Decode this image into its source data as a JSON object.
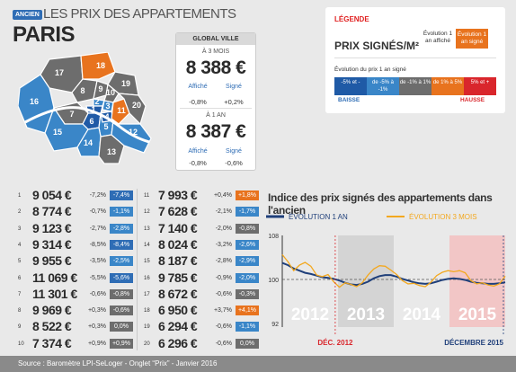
{
  "header": {
    "badge": "ANCIEN",
    "title": "LES PRIX DES APPARTEMENTS",
    "city": "PARIS"
  },
  "global": {
    "title": "GLOBAL VILLE",
    "p3": {
      "label": "À 3 MOIS",
      "price": "8 388 €",
      "affiche_label": "Affiché",
      "signe_label": "Signé",
      "affiche": "-0,8%",
      "signe": "+0,2%"
    },
    "p1": {
      "label": "À 1 AN",
      "price": "8 387 €",
      "affiche_label": "Affiché",
      "signe_label": "Signé",
      "affiche": "-0,8%",
      "signe": "-0,6%"
    }
  },
  "legend": {
    "title": "LÉGENDE",
    "prix": "PRIX SIGNÉS/M²",
    "col1": "Évolution 1 an affiché",
    "col2": "Évolution 1 an signé",
    "evo": "Évolution du prix 1 an signé",
    "scale": [
      "-5% et -",
      "de -5% à -1%",
      "de -1% à 1%",
      "de 1% à 5%",
      "5% et +"
    ],
    "scale_colors": [
      "#1f5aa6",
      "#3a86c8",
      "#6d6d6d",
      "#e8731e",
      "#d9262c"
    ],
    "baisse": "BAISSE",
    "hausse": "HAUSSE"
  },
  "colors": {
    "blue": "#2f6db5",
    "lightblue": "#3a86c8",
    "gray": "#6d6d6d",
    "orange": "#e8731e",
    "red": "#d9262c"
  },
  "map_labels": [
    "18",
    "19",
    "17",
    "8",
    "9",
    "10",
    "2",
    "3",
    "1",
    "4",
    "11",
    "20",
    "16",
    "7",
    "6",
    "5",
    "15",
    "14",
    "13",
    "12"
  ],
  "arr_left": [
    {
      "n": "1",
      "p": "9 054 €",
      "a": "-7,2%",
      "s": "-7,4%",
      "c": "blue"
    },
    {
      "n": "2",
      "p": "8 774 €",
      "a": "-0,7%",
      "s": "-1,1%",
      "c": "lightblue"
    },
    {
      "n": "3",
      "p": "9 123 €",
      "a": "-2,7%",
      "s": "-2,8%",
      "c": "lightblue"
    },
    {
      "n": "4",
      "p": "9 314 €",
      "a": "-8,5%",
      "s": "-8,4%",
      "c": "blue"
    },
    {
      "n": "5",
      "p": "9 955 €",
      "a": "-3,5%",
      "s": "-2,5%",
      "c": "lightblue"
    },
    {
      "n": "6",
      "p": "11 069 €",
      "a": "-5,5%",
      "s": "-5,6%",
      "c": "blue"
    },
    {
      "n": "7",
      "p": "11 301 €",
      "a": "-0,6%",
      "s": "-0,8%",
      "c": "gray"
    },
    {
      "n": "8",
      "p": "9 969 €",
      "a": "+0,3%",
      "s": "-0,6%",
      "c": "gray"
    },
    {
      "n": "9",
      "p": "8 522 €",
      "a": "+0,3%",
      "s": "0,0%",
      "c": "gray"
    },
    {
      "n": "10",
      "p": "7 374 €",
      "a": "+0,9%",
      "s": "+0,9%",
      "c": "gray"
    }
  ],
  "arr_right": [
    {
      "n": "11",
      "p": "7 993 €",
      "a": "+0,4%",
      "s": "+1,8%",
      "c": "orange"
    },
    {
      "n": "12",
      "p": "7 628 €",
      "a": "-2,1%",
      "s": "-1,7%",
      "c": "lightblue"
    },
    {
      "n": "13",
      "p": "7 140 €",
      "a": "-2,0%",
      "s": "-0,8%",
      "c": "gray"
    },
    {
      "n": "14",
      "p": "8 024 €",
      "a": "-3,2%",
      "s": "-2,6%",
      "c": "lightblue"
    },
    {
      "n": "15",
      "p": "8 187 €",
      "a": "-2,8%",
      "s": "-2,9%",
      "c": "lightblue"
    },
    {
      "n": "16",
      "p": "9 785 €",
      "a": "-0,9%",
      "s": "-2,0%",
      "c": "lightblue"
    },
    {
      "n": "17",
      "p": "8 672 €",
      "a": "-0,6%",
      "s": "-0,3%",
      "c": "gray"
    },
    {
      "n": "18",
      "p": "6 950 €",
      "a": "+3,7%",
      "s": "+4,1%",
      "c": "orange"
    },
    {
      "n": "19",
      "p": "6 294 €",
      "a": "-0,6%",
      "s": "-1,1%",
      "c": "lightblue"
    },
    {
      "n": "20",
      "p": "6 296 €",
      "a": "-0,6%",
      "s": "0,0%",
      "c": "gray"
    }
  ],
  "chart_data": {
    "type": "line",
    "title": "Indice des prix signés des appartements dans l'ancien",
    "ylim": [
      92,
      108
    ],
    "yticks": [
      "108",
      "100",
      "92"
    ],
    "years": [
      "2012",
      "2013",
      "2014",
      "2015"
    ],
    "series": [
      {
        "name": "ÉVOLUTION 1 AN",
        "color": "#1f3f7a",
        "values": [
          103,
          102.6,
          102,
          101.6,
          101.2,
          101,
          100.7,
          100.4,
          100.3,
          100.1,
          99.8,
          99.4,
          99.1,
          99,
          99.2,
          99.6,
          100.2,
          100.6,
          100.8,
          100.8,
          100.5,
          100.1,
          99.8,
          99.5,
          99.3,
          99.2,
          99.3,
          99.6,
          99.9,
          100.1,
          100.2,
          100.1,
          99.9,
          99.6,
          99.4,
          99.3,
          99.2,
          99.2,
          99.3,
          99.5
        ]
      },
      {
        "name": "ÉVOLUTION 3 MOIS",
        "color": "#f3a81f",
        "values": [
          104.5,
          103.2,
          101.6,
          102.6,
          103.1,
          102.4,
          100.8,
          100.5,
          100.9,
          99.6,
          98.6,
          99.4,
          99.1,
          98.7,
          99.4,
          100.8,
          101.9,
          102.5,
          102.4,
          101.7,
          100.9,
          99.8,
          99.2,
          99.3,
          98.9,
          98.7,
          99.5,
          100.7,
          101.3,
          101.6,
          101.4,
          101.6,
          101.2,
          99.8,
          99.2,
          99.4,
          99,
          98.8,
          99.2,
          100.6
        ]
      }
    ],
    "annot_left": "DÉC. 2012",
    "annot_right": "DÉCEMBRE 2015"
  },
  "footer": {
    "text": "Source : Baromètre LPI-SeLoger - Onglet “Prix” - Janvier 2016"
  }
}
